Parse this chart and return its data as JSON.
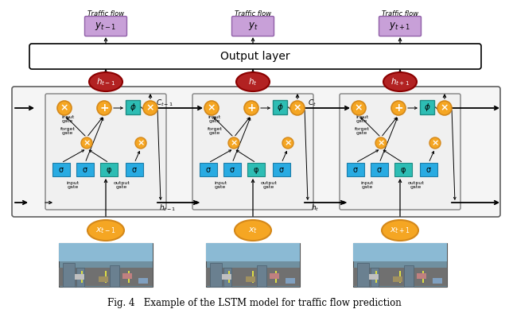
{
  "title": "Fig. 4   Example of the LSTM model for traffic flow prediction",
  "output_layer_text": "Output layer",
  "traffic_flow_label": "Traffic flow",
  "y_labels": [
    "$y_{t-1}$",
    "$y_t$",
    "$y_{t+1}$"
  ],
  "h_labels": [
    "$h_{t-1}$",
    "$h_t$",
    "$h_{t+1}$"
  ],
  "x_labels": [
    "$x_{t-1}$",
    "$x_t$",
    "$x_{t+1}$"
  ],
  "c_labels": [
    "$C_{t-1}$",
    "$C_t$"
  ],
  "orange": "#F5A623",
  "dark_orange": "#D4881A",
  "red_dark": "#8B0000",
  "red_fill": "#B22222",
  "sigma_blue": "#29ABE2",
  "sigma_dark": "#1E7DA8",
  "phi_teal": "#2DBDB4",
  "phi_dark": "#1E8A83",
  "purple_fill": "#C8A0D8",
  "purple_dark": "#9060A8",
  "white": "#FFFFFF",
  "black": "#000000",
  "lstm_bg": "#F0F0F0",
  "lstm_border": "#808080",
  "big_bg": "#F5F5F5",
  "big_border": "#606060",
  "fig_width": 6.4,
  "fig_height": 3.89,
  "dpi": 100
}
